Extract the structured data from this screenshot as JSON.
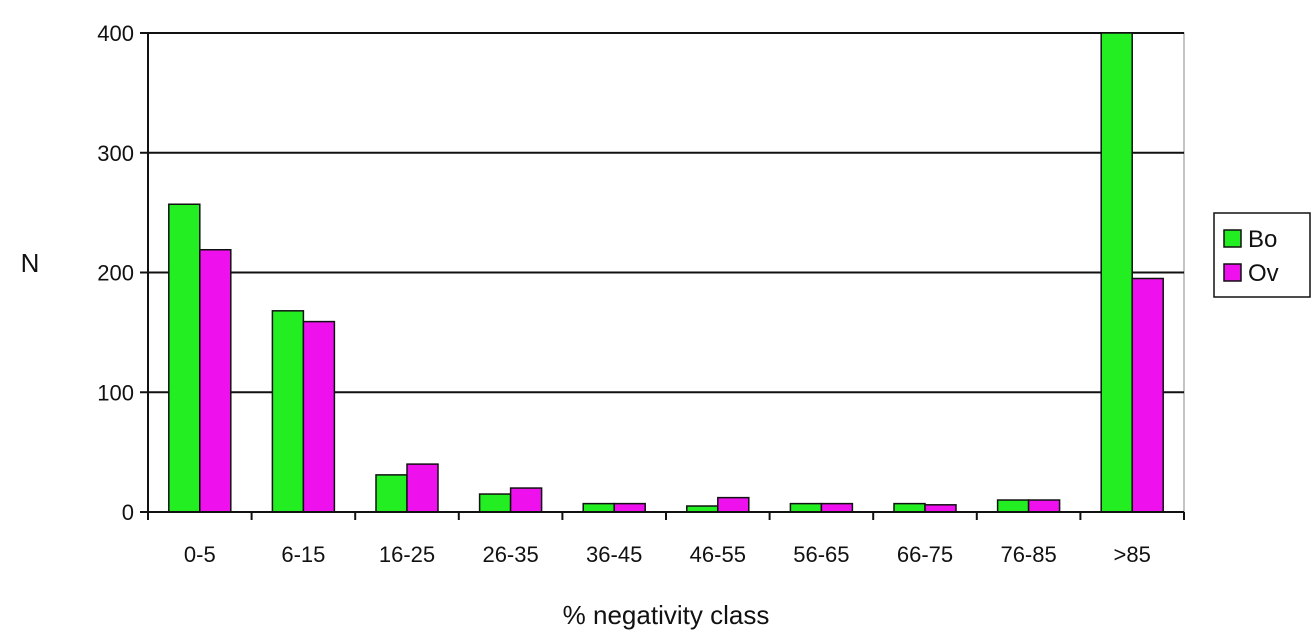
{
  "chart_data": {
    "type": "bar",
    "xlabel": "% negativity class",
    "ylabel": "N",
    "ylim": [
      0,
      400
    ],
    "yticks": [
      0,
      100,
      200,
      300,
      400
    ],
    "grid": true,
    "legend_position": "right",
    "categories": [
      "0-5",
      "6-15",
      "16-25",
      "26-35",
      "36-45",
      "46-55",
      "56-65",
      "66-75",
      "76-85",
      ">85"
    ],
    "series": [
      {
        "name": "Bo",
        "color": "#22ee22",
        "values": [
          257,
          168,
          31,
          15,
          7,
          5,
          7,
          7,
          10,
          400
        ]
      },
      {
        "name": "Ov",
        "color": "#ee11ee",
        "values": [
          219,
          159,
          40,
          20,
          7,
          12,
          7,
          6,
          10,
          195
        ]
      }
    ]
  }
}
